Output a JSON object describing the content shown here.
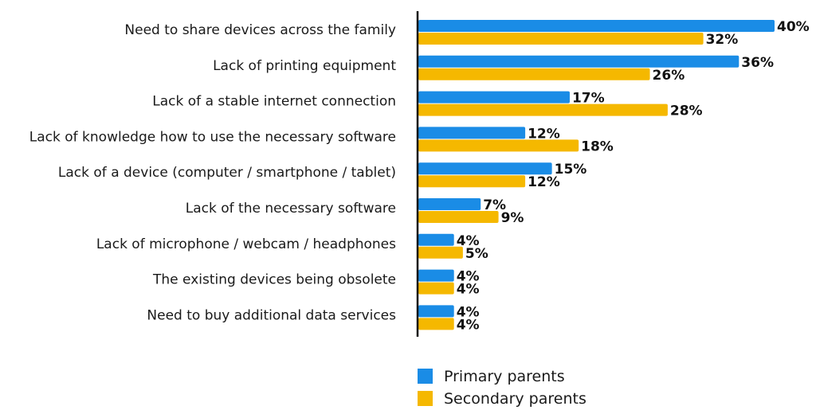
{
  "chart_data": {
    "type": "bar",
    "orientation": "horizontal",
    "categories": [
      "Need to share devices across the family",
      "Lack of printing equipment",
      "Lack of a stable internet connection",
      "Lack of knowledge how to use the necessary software",
      "Lack of a device (computer / smartphone / tablet)",
      "Lack of the necessary software",
      "Lack of microphone / webcam / headphones",
      "The existing devices being obsolete",
      "Need to buy additional data services"
    ],
    "series": [
      {
        "name": "Primary parents",
        "color": "#1a8ce6",
        "values": [
          40,
          36,
          17,
          12,
          15,
          7,
          4,
          4,
          4
        ],
        "labels": [
          "40%",
          "36%",
          "17%",
          "12%",
          "15%",
          "7%",
          "4%",
          "4%",
          "4%"
        ]
      },
      {
        "name": "Secondary parents",
        "color": "#f5b800",
        "values": [
          32,
          26,
          28,
          18,
          12,
          9,
          5,
          4,
          4
        ],
        "labels": [
          "32%",
          "26%",
          "28%",
          "18%",
          "12%",
          "9%",
          "5%",
          "4%",
          "4%"
        ]
      }
    ],
    "value_unit": "%",
    "xlim": [
      0,
      40
    ],
    "grid": false,
    "legend_position": "bottom"
  }
}
